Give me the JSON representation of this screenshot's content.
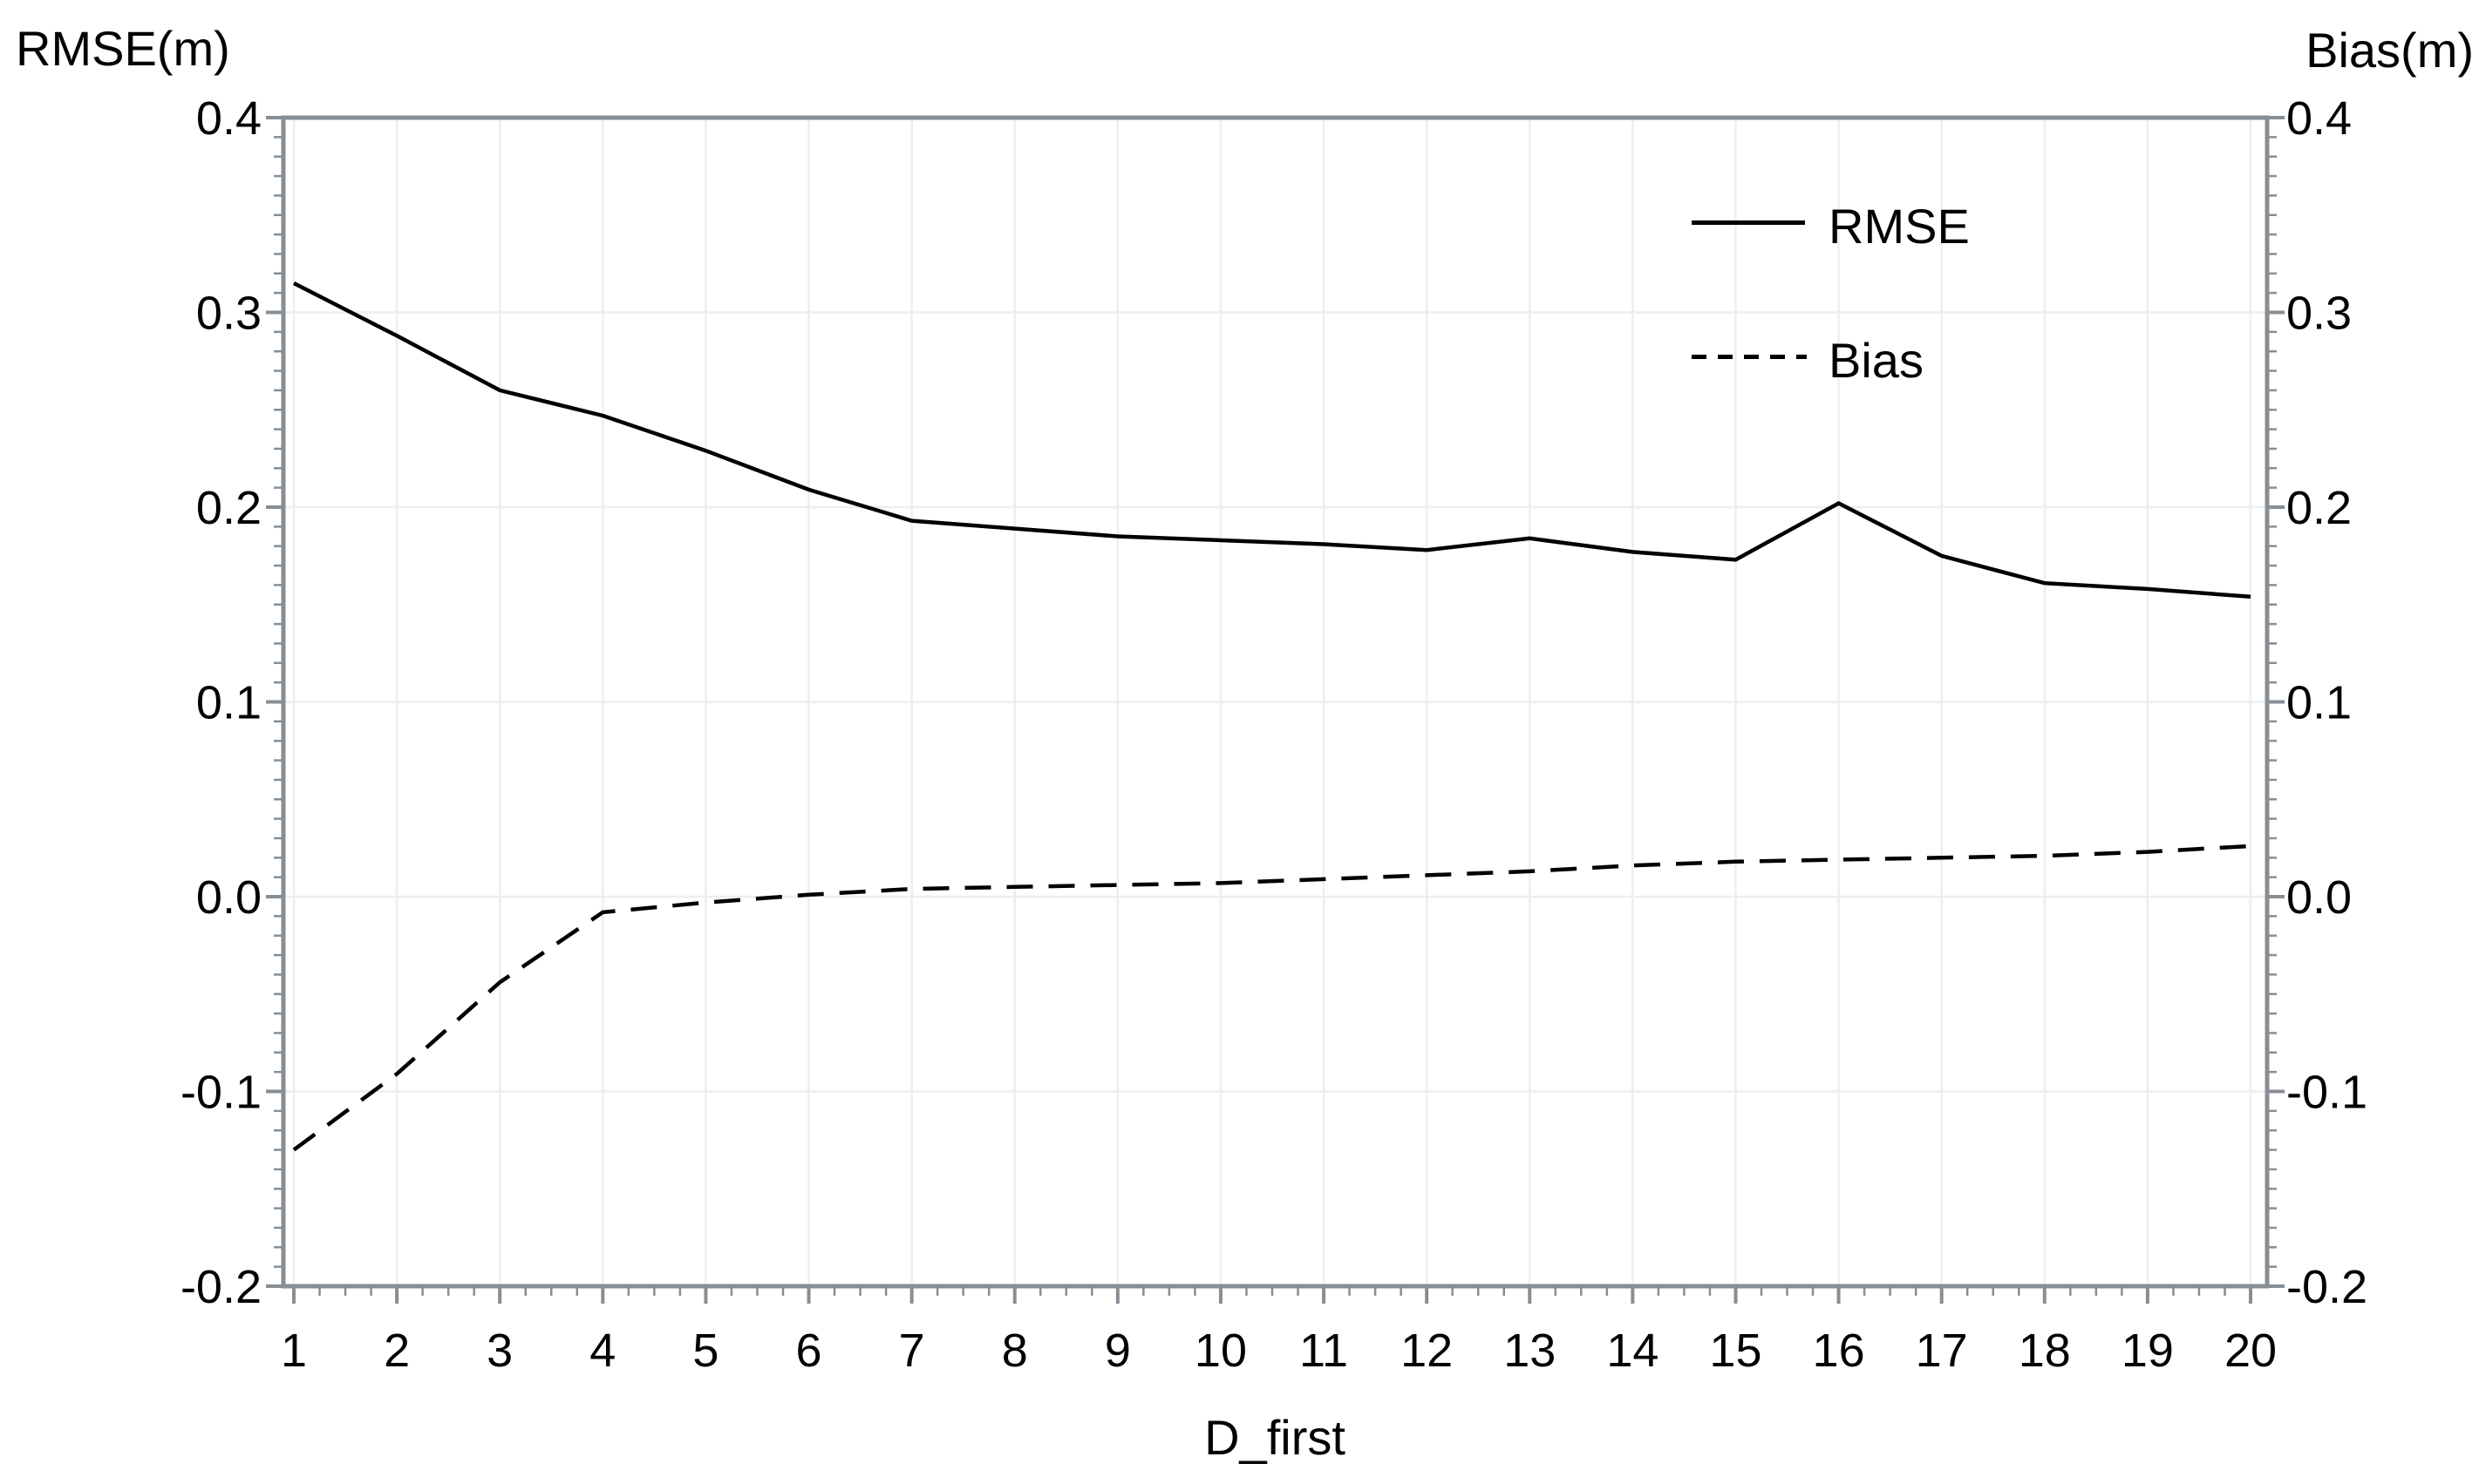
{
  "chart_data": {
    "type": "line",
    "x": [
      1,
      2,
      3,
      4,
      5,
      6,
      7,
      8,
      9,
      10,
      11,
      12,
      13,
      14,
      15,
      16,
      17,
      18,
      19,
      20
    ],
    "series": [
      {
        "name": "RMSE",
        "style": "solid",
        "axis": "left",
        "values": [
          0.315,
          0.288,
          0.26,
          0.247,
          0.229,
          0.209,
          0.193,
          0.189,
          0.185,
          0.183,
          0.181,
          0.178,
          0.184,
          0.177,
          0.173,
          0.202,
          0.175,
          0.161,
          0.158,
          0.154
        ]
      },
      {
        "name": "Bias",
        "style": "dashed",
        "axis": "right",
        "values": [
          -0.13,
          -0.091,
          -0.044,
          -0.008,
          -0.003,
          0.001,
          0.004,
          0.005,
          0.006,
          0.007,
          0.009,
          0.011,
          0.013,
          0.016,
          0.018,
          0.019,
          0.02,
          0.021,
          0.023,
          0.026
        ]
      }
    ],
    "left_axis": {
      "title": "RMSE(m)",
      "ticks": [
        "0.4",
        "0.3",
        "0.2",
        "0.1",
        "0.0",
        "-0.1",
        "-0.2"
      ],
      "range": [
        -0.2,
        0.4
      ],
      "minor_step": 0.01
    },
    "right_axis": {
      "title": "Bias(m)",
      "ticks": [
        "0.4",
        "0.3",
        "0.2",
        "0.1",
        "0.0",
        "-0.1",
        "-0.2"
      ],
      "range": [
        -0.2,
        0.4
      ],
      "minor_step": 0.01
    },
    "x_axis": {
      "title": "D_first",
      "ticks": [
        "1",
        "2",
        "3",
        "4",
        "5",
        "6",
        "7",
        "8",
        "9",
        "10",
        "11",
        "12",
        "13",
        "14",
        "15",
        "16",
        "17",
        "18",
        "19",
        "20"
      ],
      "minor_step": 0.25
    },
    "legend": [
      {
        "label": "RMSE",
        "style": "solid"
      },
      {
        "label": "Bias",
        "style": "dashed"
      }
    ],
    "grid": true,
    "legend_position": "top-right-inside",
    "colors": {
      "line": "#000000",
      "axis_frame": "#878e94",
      "gridline": "#eeeeee",
      "background": "#ffffff",
      "text": "#000000"
    }
  }
}
